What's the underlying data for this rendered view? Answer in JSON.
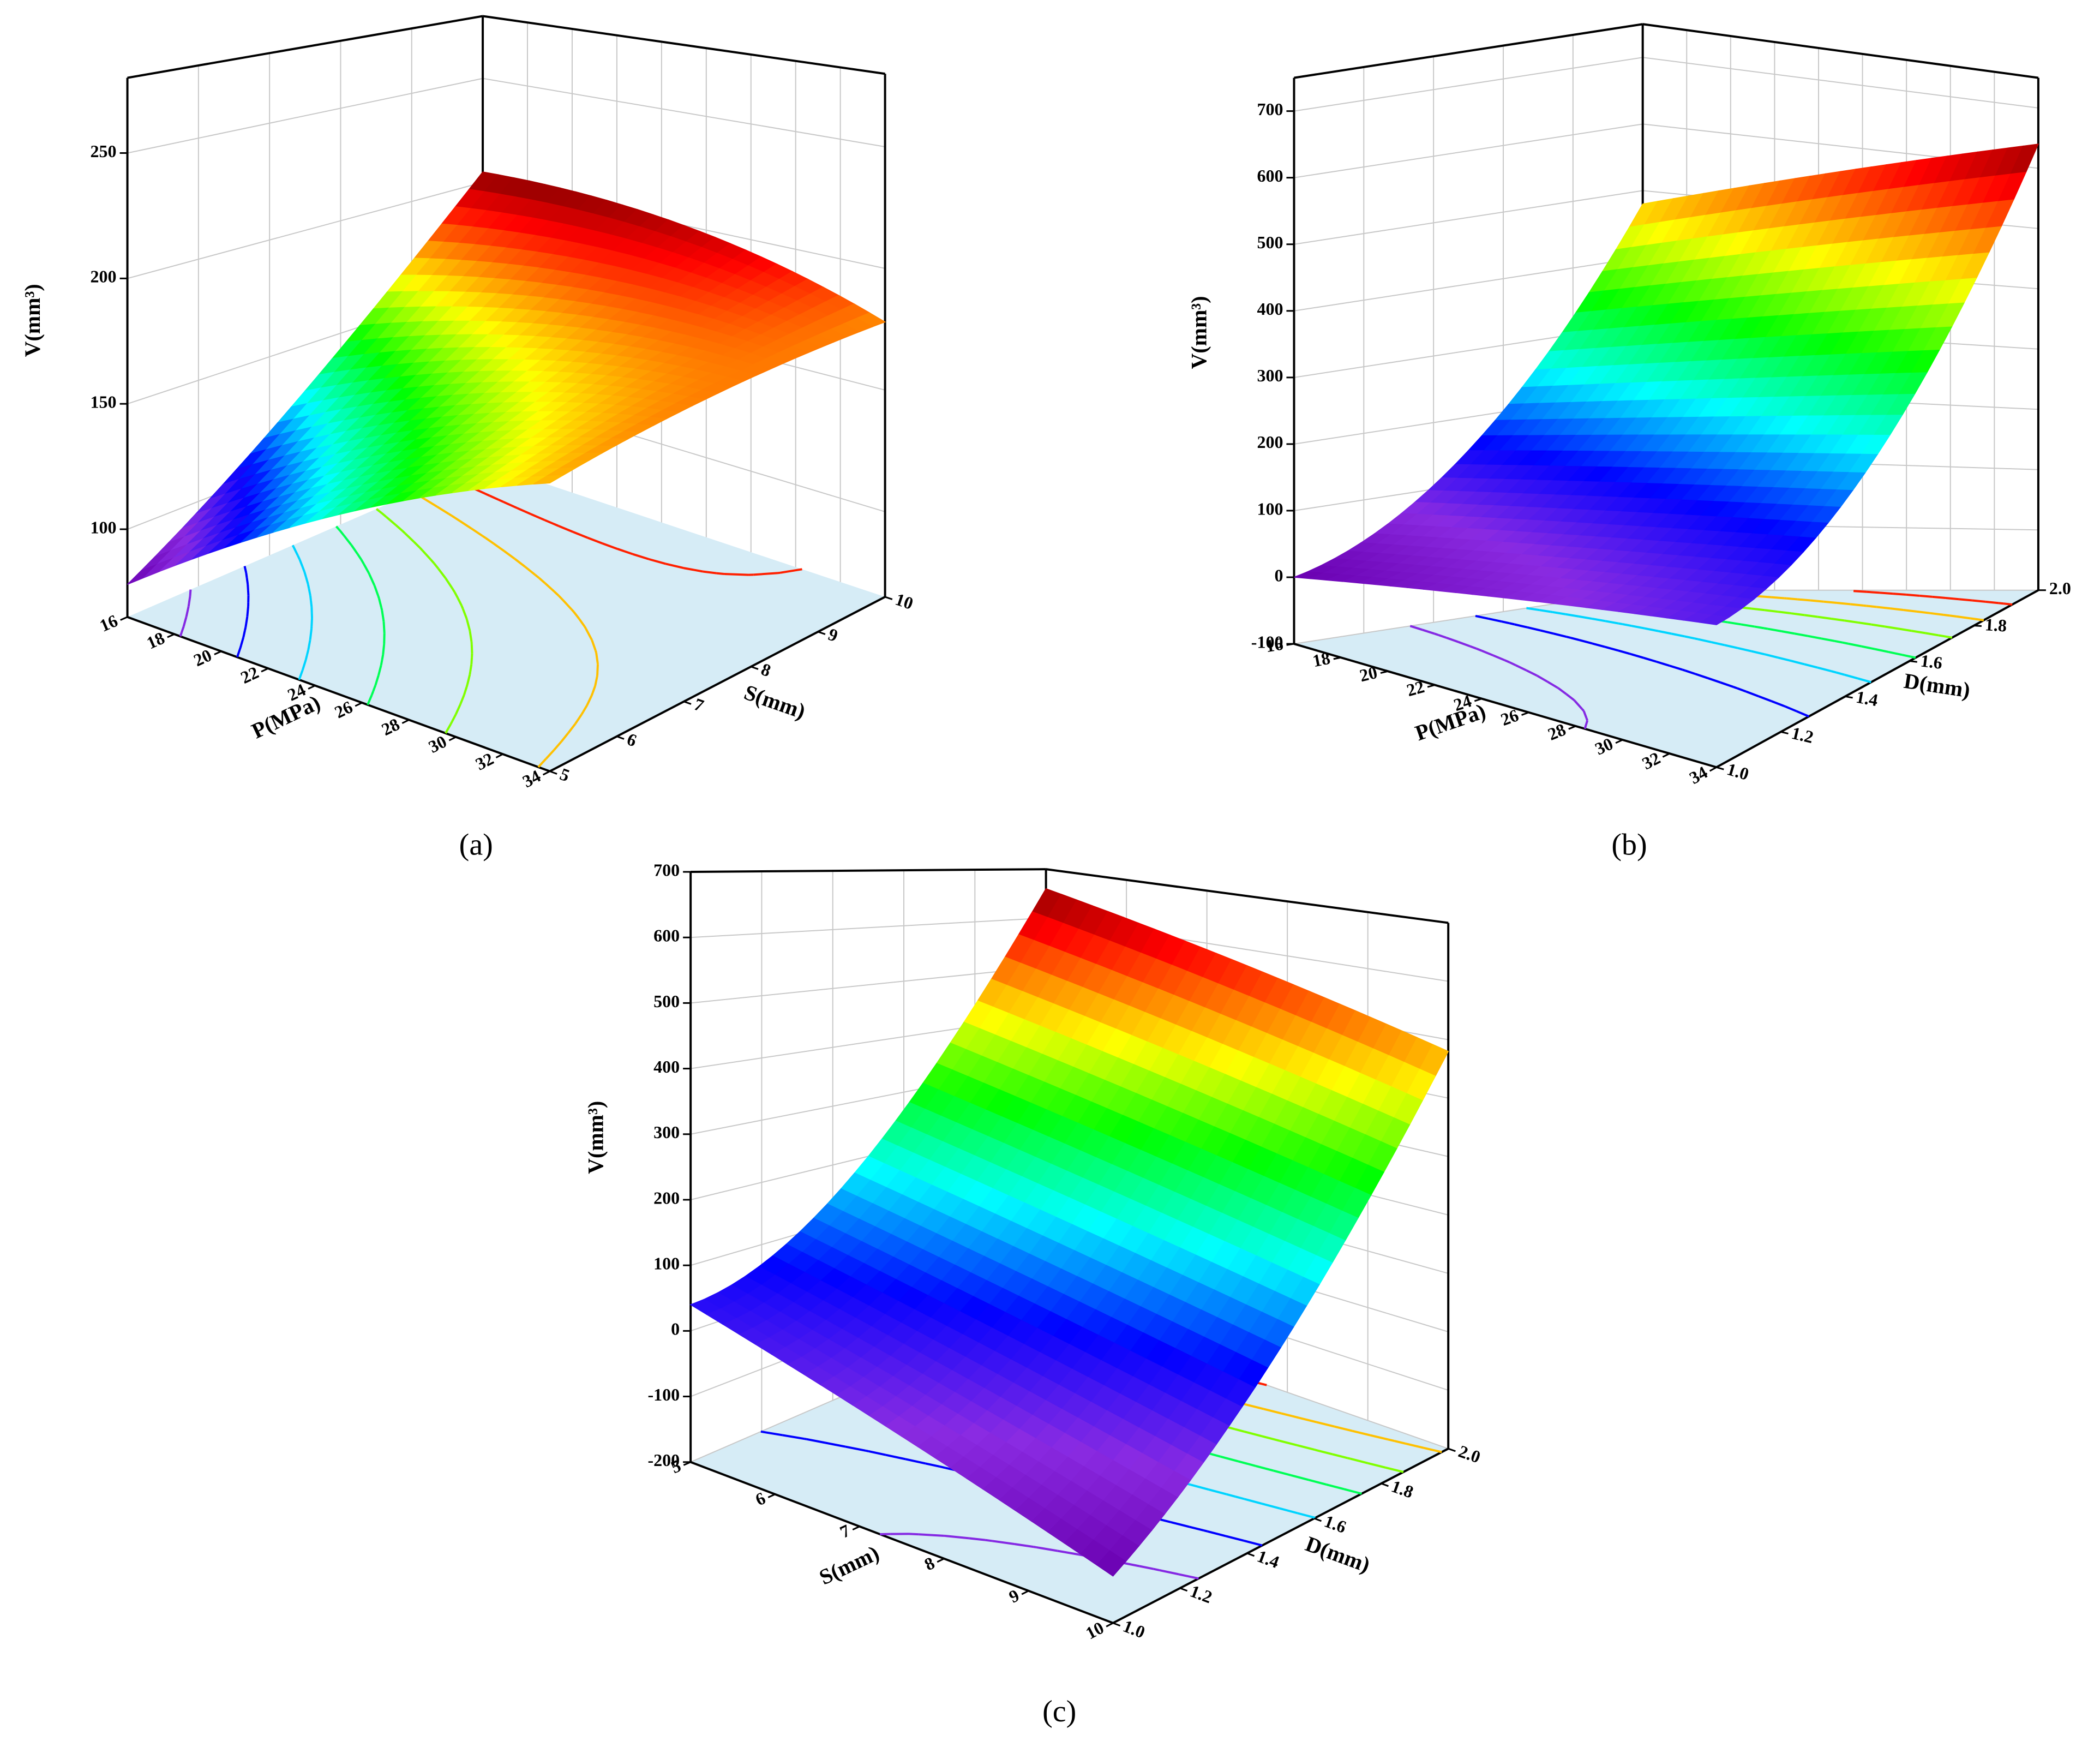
{
  "chart_data": [
    {
      "type": "surface3d",
      "label": "(a)",
      "xlabel": "P(MPa)",
      "ylabel": "S(mm)",
      "zlabel": "V(mm³)",
      "xlim": [
        16,
        34
      ],
      "xticks": [
        16,
        18,
        20,
        22,
        24,
        26,
        28,
        30,
        32,
        34
      ],
      "ylim": [
        5,
        10
      ],
      "yticks": [
        5,
        6,
        7,
        8,
        9,
        10
      ],
      "zlim": [
        65,
        280
      ],
      "zticks": [
        100,
        150,
        200,
        250
      ],
      "surface": {
        "x": [
          16,
          25,
          34
        ],
        "y": [
          5,
          7.5,
          10
        ],
        "z": [
          [
            78,
            135,
            175
          ],
          [
            130,
            165,
            180
          ],
          [
            205,
            200,
            178
          ]
        ]
      }
    },
    {
      "type": "surface3d",
      "label": "(b)",
      "xlabel": "P(MPa)",
      "ylabel": "D(mm)",
      "zlabel": "V(mm³)",
      "xlim": [
        16,
        34
      ],
      "xticks": [
        16,
        18,
        20,
        22,
        24,
        26,
        28,
        30,
        32,
        34
      ],
      "ylim": [
        1,
        2
      ],
      "yticks": [
        {
          "value": 1,
          "label": "1.0"
        },
        1.2,
        1.4,
        1.6,
        1.8,
        {
          "value": 2,
          "label": "2.0"
        }
      ],
      "zlim": [
        -100,
        750
      ],
      "zticks": [
        -100,
        0,
        100,
        200,
        300,
        400,
        500,
        600,
        700
      ],
      "surface": {
        "x": [
          16,
          25,
          34
        ],
        "y": [
          1,
          1.5,
          2
        ],
        "z": [
          [
            0,
            60,
            110
          ],
          [
            150,
            200,
            250
          ],
          [
            480,
            560,
            640
          ]
        ]
      }
    },
    {
      "type": "surface3d",
      "label": "(c)",
      "xlabel": "S(mm)",
      "ylabel": "D(mm)",
      "zlabel": "V(mm³)",
      "xlim": [
        5,
        10
      ],
      "xticks": [
        5,
        6,
        7,
        8,
        9,
        10
      ],
      "ylim": [
        1,
        2
      ],
      "yticks": [
        {
          "value": 1,
          "label": "1.0"
        },
        1.2,
        1.4,
        1.6,
        1.8,
        {
          "value": 2,
          "label": "2.0"
        }
      ],
      "zlim": [
        -200,
        700
      ],
      "zticks": [
        -200,
        -100,
        0,
        100,
        200,
        300,
        400,
        500,
        600,
        700
      ],
      "surface": {
        "x": [
          5,
          7.5,
          10
        ],
        "y": [
          1,
          1.5,
          2
        ],
        "z": [
          [
            40,
            -40,
            -130
          ],
          [
            200,
            150,
            100
          ],
          [
            660,
            570,
            480
          ]
        ]
      }
    }
  ]
}
